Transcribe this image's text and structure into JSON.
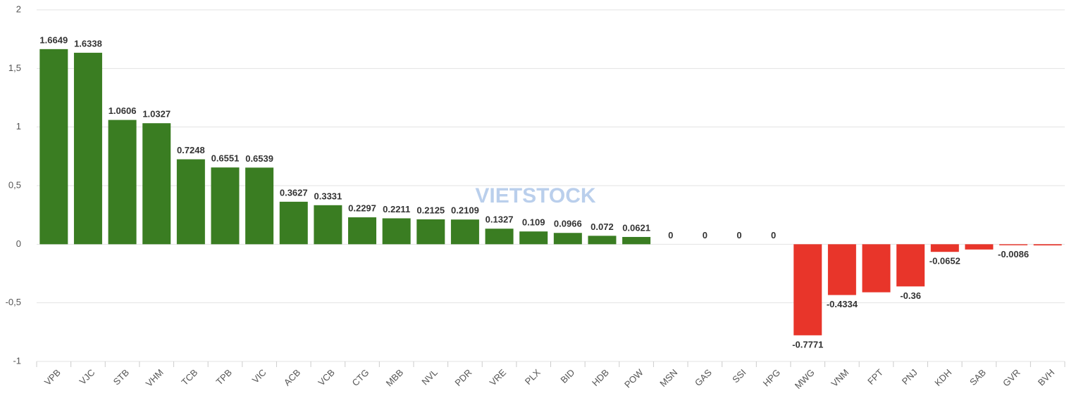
{
  "chart_data": {
    "type": "bar",
    "watermark": "VIETSTOCK",
    "categories": [
      "VPB",
      "VJC",
      "STB",
      "VHM",
      "TCB",
      "TPB",
      "VIC",
      "ACB",
      "VCB",
      "CTG",
      "MBB",
      "NVL",
      "PDR",
      "VRE",
      "PLX",
      "BID",
      "HDB",
      "POW",
      "MSN",
      "GAS",
      "SSI",
      "HPG",
      "MWG",
      "VNM",
      "FPT",
      "PNJ",
      "KDH",
      "SAB",
      "GVR",
      "BVH"
    ],
    "values": [
      1.6649,
      1.6338,
      1.0606,
      1.0327,
      0.7248,
      0.6551,
      0.6539,
      0.3627,
      0.3331,
      0.2297,
      0.2211,
      0.2125,
      0.2109,
      0.1327,
      0.109,
      0.0966,
      0.072,
      0.0621,
      0,
      0,
      0,
      0,
      -0.7771,
      -0.4334,
      -0.41,
      -0.36,
      -0.0652,
      -0.045,
      -0.0086,
      -0.01
    ],
    "value_labels": [
      "1.6649",
      "1.6338",
      "1.0606",
      "1.0327",
      "0.7248",
      "0.6551",
      "0.6539",
      "0.3627",
      "0.3331",
      "0.2297",
      "0.2211",
      "0.2125",
      "0.2109",
      "0.1327",
      "0.109",
      "0.0966",
      "0.072",
      "0.0621",
      "0",
      "0",
      "0",
      "0",
      "-0.7771",
      "-0.4334",
      null,
      "-0.36",
      "-0.0652",
      null,
      "-0.0086",
      null
    ],
    "positive_color": "#3a7d22",
    "negative_color": "#e8352a",
    "ylim": [
      -1,
      2
    ],
    "yticks": [
      -1,
      {
        "value": -0.5,
        "label": "-0,5"
      },
      0,
      {
        "value": 0.5,
        "label": "0,5"
      },
      1,
      {
        "value": 1.5,
        "label": "1,5"
      },
      2
    ],
    "grid": true
  }
}
